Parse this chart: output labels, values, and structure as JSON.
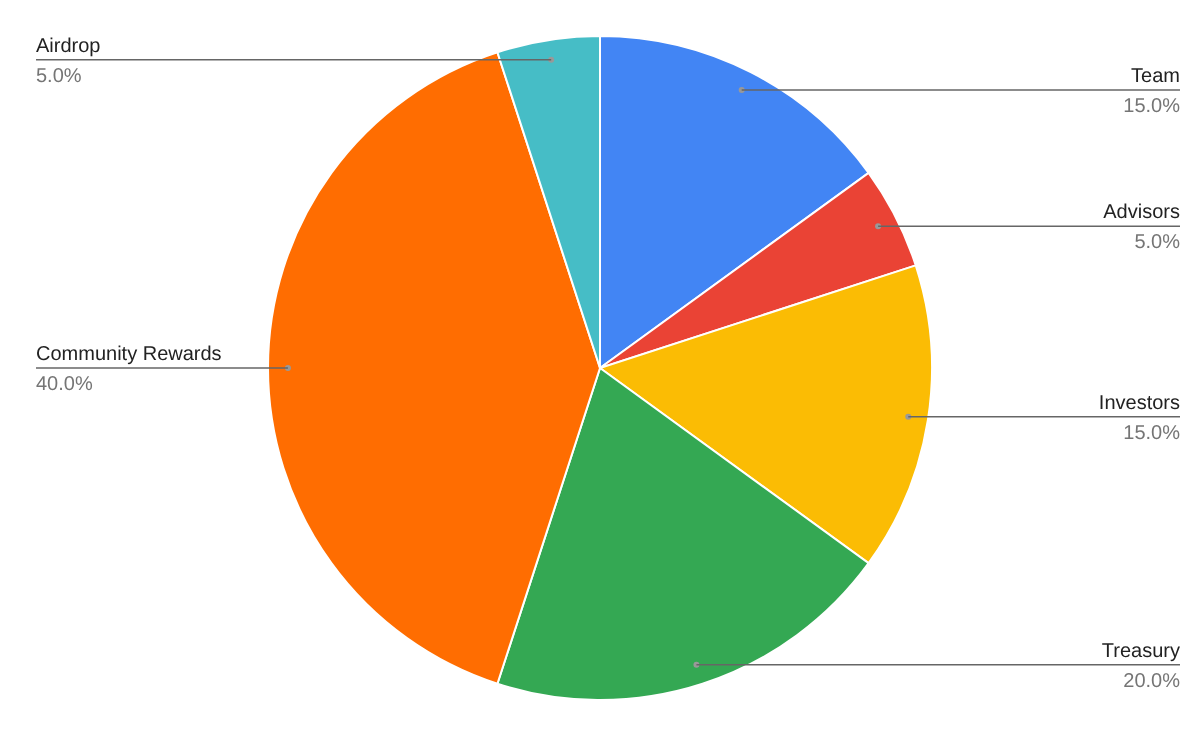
{
  "chart_data": {
    "type": "pie",
    "categories": [
      "Team",
      "Advisors",
      "Investors",
      "Treasury",
      "Community Rewards",
      "Airdrop"
    ],
    "values": [
      15,
      5,
      15,
      20,
      40,
      5
    ],
    "value_labels": [
      "15.0%",
      "5.0%",
      "15.0%",
      "20.0%",
      "40.0%",
      "5.0%"
    ],
    "colors": [
      "#4285f4",
      "#ea4335",
      "#fbbc04",
      "#34a853",
      "#ff6d01",
      "#46bdc6"
    ],
    "legend": false
  }
}
